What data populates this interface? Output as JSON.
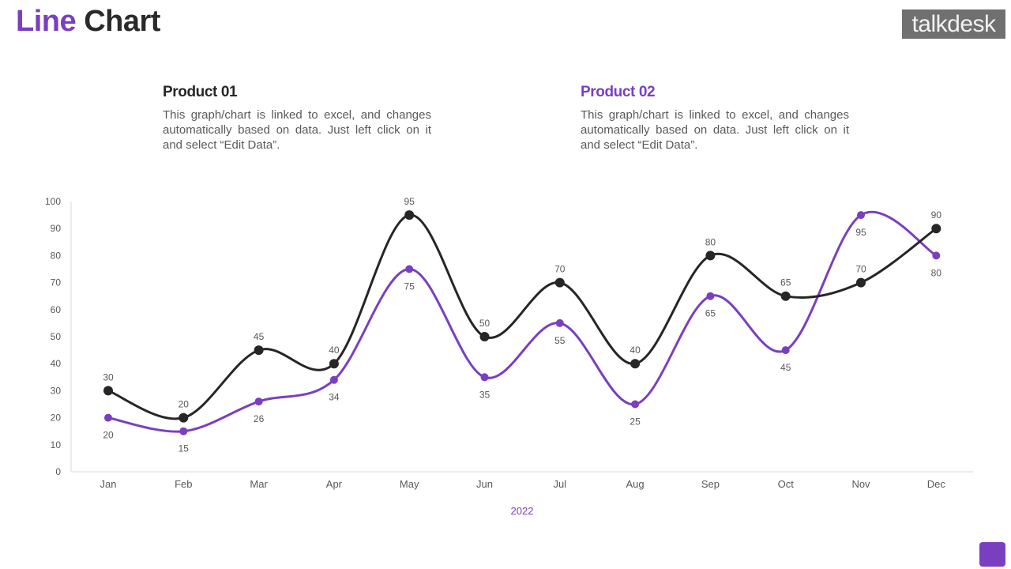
{
  "page": {
    "title_part1": "Line",
    "title_part2": "Chart",
    "logo_text": "talkdesk"
  },
  "products": [
    {
      "heading": "Product 01",
      "description": "This graph/chart is linked to excel, and changes automatically based on data. Just left click on it and select “Edit Data”."
    },
    {
      "heading": "Product 02",
      "description": "This graph/chart is linked to excel, and changes automatically based on data. Just left click on it and select “Edit Data”."
    }
  ],
  "colors": {
    "accent": "#7a3fc0",
    "series1": "#262626",
    "series2": "#7a3fc0",
    "axis_text": "#595959"
  },
  "chart_data": {
    "type": "line",
    "title": "",
    "xlabel": "2022",
    "ylabel": "",
    "categories": [
      "Jan",
      "Feb",
      "Mar",
      "Apr",
      "May",
      "Jun",
      "Jul",
      "Aug",
      "Sep",
      "Oct",
      "Nov",
      "Dec"
    ],
    "ylim": [
      0,
      100
    ],
    "yticks": [
      0,
      10,
      20,
      30,
      40,
      50,
      60,
      70,
      80,
      90,
      100
    ],
    "grid": false,
    "series": [
      {
        "name": "Product 01",
        "color": "#262626",
        "label_position": "above",
        "values": [
          30,
          20,
          45,
          40,
          95,
          50,
          70,
          40,
          80,
          65,
          70,
          90
        ]
      },
      {
        "name": "Product 02",
        "color": "#7a3fc0",
        "label_position": "below",
        "values": [
          20,
          15,
          26,
          34,
          75,
          35,
          55,
          25,
          65,
          45,
          95,
          80
        ]
      }
    ]
  }
}
